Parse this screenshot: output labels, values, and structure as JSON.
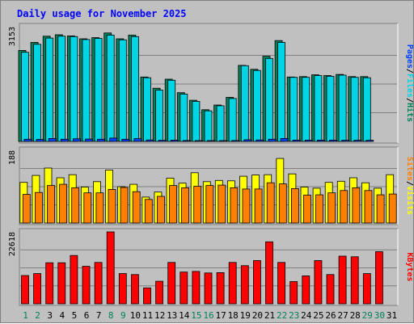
{
  "chart_data": {
    "type": "bar",
    "title": "Daily usage for November 2025",
    "days": [
      "1",
      "2",
      "3",
      "4",
      "5",
      "6",
      "7",
      "8",
      "9",
      "10",
      "11",
      "12",
      "13",
      "14",
      "15",
      "16",
      "17",
      "18",
      "19",
      "20",
      "21",
      "22",
      "23",
      "24",
      "25",
      "26",
      "27",
      "28",
      "29",
      "30",
      "31"
    ],
    "weekend_days": [
      "1",
      "2",
      "8",
      "9",
      "15",
      "16",
      "22",
      "23",
      "29",
      "30"
    ],
    "panels": [
      {
        "id": "hits",
        "max_label": "3153",
        "ymax": 3153,
        "legend": [
          "Pages",
          "Files",
          "Hits"
        ],
        "series": [
          {
            "name": "Hits",
            "color": "#00805c",
            "values": [
              2500,
              2720,
              2890,
              2930,
              2900,
              2820,
              2850,
              2980,
              2820,
              2920,
              1770,
              1460,
              1710,
              1340,
              1130,
              870,
              1000,
              1210,
              2090,
              1980,
              2340,
              2770,
              1770,
              1780,
              1830,
              1810,
              1840,
              1780,
              1780,
              0,
              0
            ]
          },
          {
            "name": "Files",
            "color": "#00d5e6",
            "values": [
              2450,
              2670,
              2840,
              2890,
              2880,
              2800,
              2830,
              2920,
              2790,
              2880,
              1750,
              1410,
              1680,
              1300,
              1100,
              840,
              980,
              1180,
              2080,
              1950,
              2280,
              2720,
              1760,
              1760,
              1810,
              1790,
              1820,
              1760,
              1750,
              0,
              0
            ]
          },
          {
            "name": "Pages",
            "color": "#0040ff",
            "values": [
              60,
              55,
              80,
              60,
              70,
              65,
              60,
              90,
              60,
              75,
              40,
              30,
              35,
              25,
              20,
              20,
              15,
              25,
              45,
              40,
              60,
              80,
              35,
              35,
              35,
              35,
              30,
              30,
              30,
              0,
              0
            ]
          }
        ]
      },
      {
        "id": "visits",
        "max_label": "188",
        "ymax": 188,
        "legend": [
          "Sites",
          "Visits"
        ],
        "series": [
          {
            "name": "Visits",
            "color": "#ffff00",
            "values": [
              105,
              123,
              142,
              117,
              125,
              93,
              107,
              137,
              94,
              100,
              67,
              80,
              116,
              103,
              130,
              107,
              110,
              109,
              121,
              124,
              125,
              167,
              127,
              93,
              90,
              105,
              108,
              117,
              104,
              90,
              125
            ]
          },
          {
            "name": "Sites",
            "color": "#ff8000",
            "values": [
              74,
              79,
              97,
              100,
              91,
              78,
              78,
              87,
              92,
              81,
              61,
              69,
              97,
              91,
              95,
              97,
              98,
              91,
              88,
              88,
              104,
              101,
              89,
              72,
              73,
              78,
              84,
              91,
              84,
              73,
              75
            ]
          }
        ]
      },
      {
        "id": "kbytes",
        "max_label": "22618",
        "ymax": 22618,
        "legend": [
          "KBytes"
        ],
        "series": [
          {
            "name": "KBytes",
            "color": "#ff0000",
            "values": [
              8900,
              9500,
              12900,
              12900,
              15200,
              11800,
              13000,
              22618,
              9500,
              9200,
              5000,
              7100,
              13000,
              10000,
              10200,
              9700,
              9800,
              13000,
              12000,
              13600,
              19500,
              13000,
              7000,
              8800,
              13600,
              9200,
              15000,
              14800,
              9500,
              16400,
              0
            ]
          }
        ]
      }
    ]
  },
  "colors": {
    "background": "#c0c0c0",
    "plot_background": "#c0c0c0",
    "title": "#0000ff",
    "weekday_label": "#000000",
    "weekend_label": "#00805c"
  }
}
